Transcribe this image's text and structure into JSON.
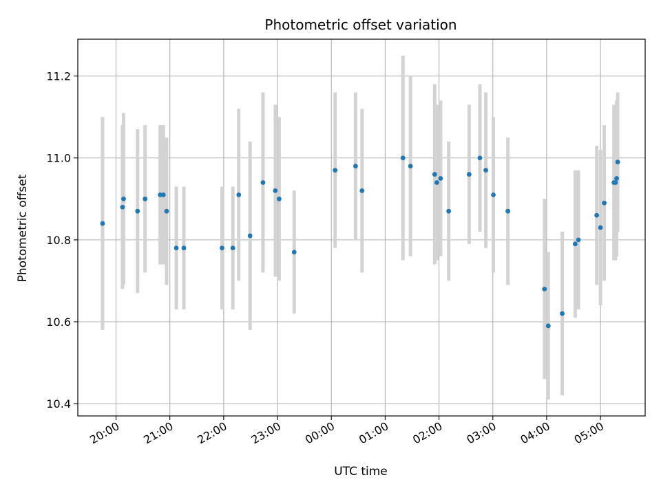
{
  "chart_data": {
    "type": "scatter",
    "title": "Photometric offset variation",
    "xlabel": "UTC time",
    "ylabel": "Photometric offset",
    "x_unit": "hours relative to 00:00 UTC (negative = previous day)",
    "xlim": [
      -4.71,
      5.83
    ],
    "ylim": [
      10.37,
      11.29
    ],
    "x_ticks": [
      -4,
      -3,
      -2,
      -1,
      0,
      1,
      2,
      3,
      4,
      5
    ],
    "x_tick_labels": [
      "20:00",
      "21:00",
      "22:00",
      "23:00",
      "00:00",
      "01:00",
      "02:00",
      "03:00",
      "04:00",
      "05:00"
    ],
    "y_ticks": [
      10.4,
      10.6,
      10.8,
      11.0,
      11.2
    ],
    "y_tick_labels": [
      "10.4",
      "10.6",
      "10.8",
      "11.0",
      "11.2"
    ],
    "grid": true,
    "point_color": "#1f77b4",
    "errorbar_color": "#d3d3d3",
    "points": [
      {
        "x": -4.25,
        "y": 10.84,
        "err": 0.26
      },
      {
        "x": -3.88,
        "y": 10.88,
        "err": 0.2
      },
      {
        "x": -3.86,
        "y": 10.9,
        "err": 0.21
      },
      {
        "x": -3.6,
        "y": 10.87,
        "err": 0.2
      },
      {
        "x": -3.46,
        "y": 10.9,
        "err": 0.18
      },
      {
        "x": -3.18,
        "y": 10.91,
        "err": 0.17
      },
      {
        "x": -3.12,
        "y": 10.91,
        "err": 0.17
      },
      {
        "x": -3.06,
        "y": 10.87,
        "err": 0.18
      },
      {
        "x": -2.88,
        "y": 10.78,
        "err": 0.15
      },
      {
        "x": -2.74,
        "y": 10.78,
        "err": 0.15
      },
      {
        "x": -2.03,
        "y": 10.78,
        "err": 0.15
      },
      {
        "x": -1.83,
        "y": 10.78,
        "err": 0.15
      },
      {
        "x": -1.72,
        "y": 10.91,
        "err": 0.21
      },
      {
        "x": -1.51,
        "y": 10.81,
        "err": 0.23
      },
      {
        "x": -1.27,
        "y": 10.94,
        "err": 0.22
      },
      {
        "x": -1.04,
        "y": 10.92,
        "err": 0.21
      },
      {
        "x": -0.97,
        "y": 10.9,
        "err": 0.2
      },
      {
        "x": -0.69,
        "y": 10.77,
        "err": 0.15
      },
      {
        "x": 0.07,
        "y": 10.97,
        "err": 0.19
      },
      {
        "x": 0.45,
        "y": 10.98,
        "err": 0.18
      },
      {
        "x": 0.57,
        "y": 10.92,
        "err": 0.2
      },
      {
        "x": 1.33,
        "y": 11.0,
        "err": 0.25
      },
      {
        "x": 1.47,
        "y": 10.98,
        "err": 0.22
      },
      {
        "x": 1.92,
        "y": 10.96,
        "err": 0.22
      },
      {
        "x": 1.96,
        "y": 10.94,
        "err": 0.19
      },
      {
        "x": 2.03,
        "y": 10.95,
        "err": 0.19
      },
      {
        "x": 2.18,
        "y": 10.87,
        "err": 0.17
      },
      {
        "x": 2.56,
        "y": 10.96,
        "err": 0.17
      },
      {
        "x": 2.76,
        "y": 11.0,
        "err": 0.18
      },
      {
        "x": 2.87,
        "y": 10.97,
        "err": 0.19
      },
      {
        "x": 3.01,
        "y": 10.91,
        "err": 0.19
      },
      {
        "x": 3.28,
        "y": 10.87,
        "err": 0.18
      },
      {
        "x": 3.96,
        "y": 10.68,
        "err": 0.22
      },
      {
        "x": 4.03,
        "y": 10.59,
        "err": 0.18
      },
      {
        "x": 4.29,
        "y": 10.62,
        "err": 0.2
      },
      {
        "x": 4.53,
        "y": 10.79,
        "err": 0.18
      },
      {
        "x": 4.59,
        "y": 10.8,
        "err": 0.17
      },
      {
        "x": 4.93,
        "y": 10.86,
        "err": 0.17
      },
      {
        "x": 5.0,
        "y": 10.83,
        "err": 0.19
      },
      {
        "x": 5.07,
        "y": 10.89,
        "err": 0.19
      },
      {
        "x": 5.25,
        "y": 10.94,
        "err": 0.19
      },
      {
        "x": 5.28,
        "y": 10.94,
        "err": 0.19
      },
      {
        "x": 5.3,
        "y": 10.95,
        "err": 0.19
      },
      {
        "x": 5.32,
        "y": 10.99,
        "err": 0.17
      }
    ]
  }
}
